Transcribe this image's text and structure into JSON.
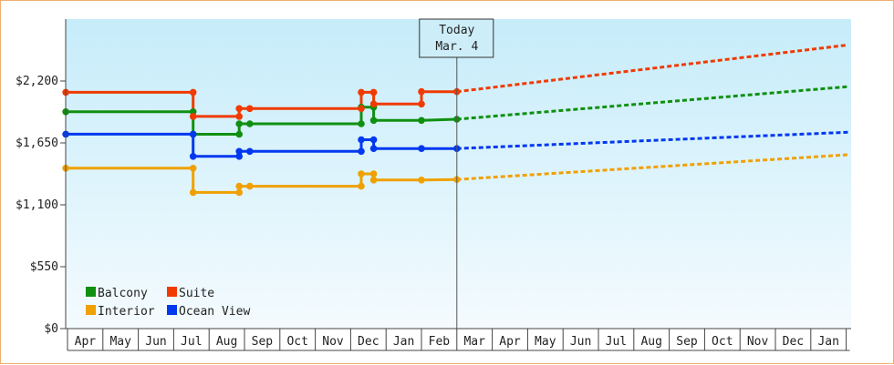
{
  "chart_data": {
    "type": "line",
    "title": "",
    "xlabel": "",
    "ylabel": "",
    "ylim": [
      0,
      2750
    ],
    "y_ticks": [
      0,
      550,
      1100,
      1650,
      2200
    ],
    "y_tick_labels": [
      "$0",
      "$550",
      "$1,100",
      "$1,650",
      "$2,200"
    ],
    "x_tick_labels": [
      "Apr",
      "May",
      "Jun",
      "Jul",
      "Aug",
      "Sep",
      "Oct",
      "Nov",
      "Dec",
      "Jan",
      "Feb",
      "Mar",
      "Apr",
      "May",
      "Jun",
      "Jul",
      "Aug",
      "Sep",
      "Oct",
      "Nov",
      "Dec",
      "Jan"
    ],
    "x_range": [
      0,
      22
    ],
    "grid": false,
    "background": "light blue vertical gradient",
    "legend": {
      "placement": "bottom-left"
    },
    "today_marker": {
      "x": 11.0,
      "line1": "Today",
      "line2": "Mar. 4"
    },
    "series": [
      {
        "name": "Balcony",
        "color": "#109010",
        "points": [
          [
            -0.05,
            1927
          ],
          [
            3.55,
            1927
          ],
          [
            3.55,
            1727
          ],
          [
            4.85,
            1727
          ],
          [
            4.85,
            1820
          ],
          [
            5.15,
            1820
          ],
          [
            8.3,
            1820
          ],
          [
            8.3,
            1967
          ],
          [
            8.65,
            1967
          ],
          [
            8.65,
            1850
          ],
          [
            10.0,
            1850
          ],
          [
            11.0,
            1860
          ]
        ],
        "projection": [
          [
            11.0,
            1860
          ],
          [
            22.05,
            2150
          ]
        ]
      },
      {
        "name": "Suite",
        "color": "#f03a00",
        "points": [
          [
            -0.05,
            2100
          ],
          [
            3.55,
            2100
          ],
          [
            3.55,
            1885
          ],
          [
            4.85,
            1885
          ],
          [
            4.85,
            1955
          ],
          [
            5.15,
            1955
          ],
          [
            8.3,
            1955
          ],
          [
            8.3,
            2100
          ],
          [
            8.65,
            2100
          ],
          [
            8.65,
            1995
          ],
          [
            10.0,
            1995
          ],
          [
            10.0,
            2105
          ],
          [
            11.0,
            2105
          ]
        ],
        "projection": [
          [
            11.0,
            2105
          ],
          [
            22.05,
            2520
          ]
        ]
      },
      {
        "name": "Interior",
        "color": "#f0a000",
        "points": [
          [
            -0.05,
            1425
          ],
          [
            3.55,
            1425
          ],
          [
            3.55,
            1210
          ],
          [
            4.85,
            1210
          ],
          [
            4.85,
            1265
          ],
          [
            5.15,
            1265
          ],
          [
            8.3,
            1265
          ],
          [
            8.3,
            1375
          ],
          [
            8.65,
            1375
          ],
          [
            8.65,
            1320
          ],
          [
            10.0,
            1320
          ],
          [
            11.0,
            1325
          ]
        ],
        "projection": [
          [
            11.0,
            1325
          ],
          [
            22.05,
            1545
          ]
        ]
      },
      {
        "name": "Ocean View",
        "color": "#0038f0",
        "points": [
          [
            -0.05,
            1728
          ],
          [
            3.55,
            1728
          ],
          [
            3.55,
            1530
          ],
          [
            4.85,
            1530
          ],
          [
            4.85,
            1575
          ],
          [
            5.15,
            1575
          ],
          [
            8.3,
            1575
          ],
          [
            8.3,
            1678
          ],
          [
            8.65,
            1678
          ],
          [
            8.65,
            1600
          ],
          [
            10.0,
            1600
          ],
          [
            11.0,
            1600
          ]
        ],
        "projection": [
          [
            11.0,
            1600
          ],
          [
            22.05,
            1745
          ]
        ]
      }
    ]
  }
}
